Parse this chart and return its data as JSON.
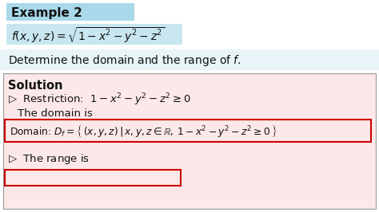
{
  "title": "Example 2",
  "formula": "$f(x, y, z) = \\sqrt{1 - x^2 - y^2 - z^2}$",
  "determine_text": "Determine the domain and the range of $f$.",
  "solution_label": "Solution",
  "restriction_line": "$\\triangleright$  Restriction:  $1 - x^2 - y^2 - z^2 \\geq 0$",
  "domain_is": "    The domain is",
  "domain_box": "Domain: $D_f = \\left\\{\\,(x, y, z)\\,\\middle|\\, x, y, z \\in \\mathbb{R},\\, 1 - x^2 - y^2 - z^2 \\geq 0\\,\\right\\}$",
  "range_line": "$\\triangleright$  The range is",
  "bg_white": "#ffffff",
  "bg_blue_light": "#e8f4f8",
  "bg_formula": "#c8e6f0",
  "bg_solution": "#fce8e8",
  "bg_example_title": "#a8d8ea",
  "color_red_border": "#cc0000",
  "color_black": "#111111",
  "color_dark": "#222222"
}
